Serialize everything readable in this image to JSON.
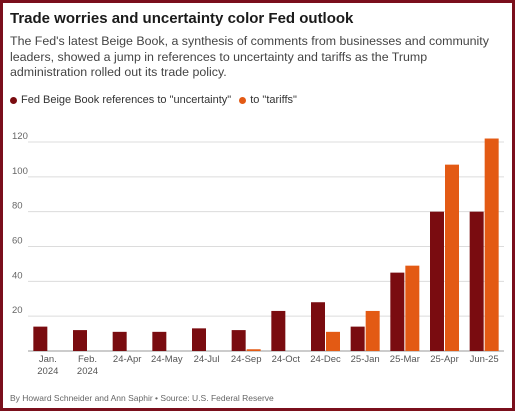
{
  "header": {
    "title": "Trade worries and uncertainty color Fed outlook",
    "subtitle": "The Fed's latest Beige Book, a synthesis of comments from businesses and community leaders, showed a jump in references to uncertainty and tariffs as the Trump administration rolled out its trade policy."
  },
  "legend": {
    "uncertainty": "Fed Beige Book references to \"uncertainty\"",
    "tariffs": "to \"tariffs\""
  },
  "footer": {
    "credit": "By Howard Schneider and Ann Saphir • Source: U.S. Federal Reserve"
  },
  "colors": {
    "uncertainty": "#7a0c10",
    "tariffs": "#e35a14",
    "grid": "#dcdcdc",
    "frame": "#7a0f1c"
  },
  "chart_data": {
    "type": "bar",
    "categories": [
      "Jan. 2024",
      "Feb. 2024",
      "24-Apr",
      "24-May",
      "24-Jul",
      "24-Sep",
      "24-Oct",
      "24-Dec",
      "25-Jan",
      "25-Mar",
      "25-Apr",
      "Jun-25"
    ],
    "category_lines": [
      [
        "Jan.",
        "2024"
      ],
      [
        "Feb.",
        "2024"
      ],
      [
        "24-Apr"
      ],
      [
        "24-May"
      ],
      [
        "24-Jul"
      ],
      [
        "24-Sep"
      ],
      [
        "24-Oct"
      ],
      [
        "24-Dec"
      ],
      [
        "25-Jan"
      ],
      [
        "25-Mar"
      ],
      [
        "25-Apr"
      ],
      [
        "Jun-25"
      ]
    ],
    "series": [
      {
        "name": "Fed Beige Book references to \"uncertainty\"",
        "key": "uncertainty",
        "values": [
          14,
          12,
          11,
          11,
          13,
          12,
          23,
          28,
          14,
          45,
          80,
          80
        ]
      },
      {
        "name": "to \"tariffs\"",
        "key": "tariffs",
        "values": [
          0,
          0,
          0,
          0,
          0,
          1,
          0,
          11,
          23,
          49,
          107,
          122
        ]
      }
    ],
    "yticks": [
      20,
      40,
      60,
      80,
      100,
      120
    ],
    "ylim": [
      0,
      130
    ],
    "grid": true,
    "legend_position": "top-left"
  }
}
